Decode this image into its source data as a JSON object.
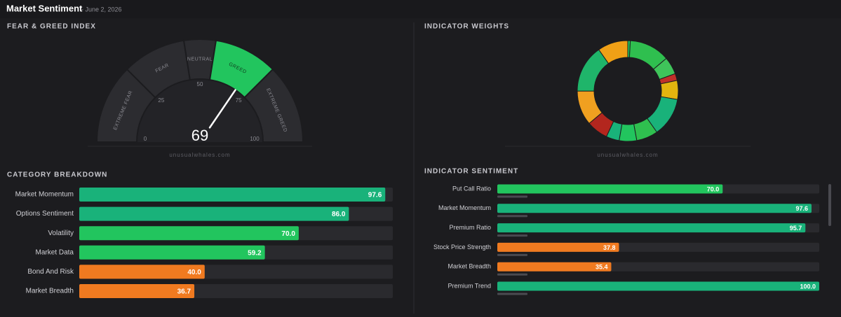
{
  "header": {
    "title": "Market Sentiment",
    "date": "- June 2, 2026"
  },
  "chart_data": [
    {
      "type": "gauge",
      "title": "FEAR & GREED INDEX",
      "value": 69,
      "lim": [
        0,
        100
      ],
      "ticks": [
        0,
        25,
        50,
        75,
        100
      ],
      "color": "#22c55e",
      "band_color": "#2c2c30",
      "bands": [
        {
          "label": "EXTREME FEAR",
          "from": 0,
          "to": 25
        },
        {
          "label": "FEAR",
          "from": 25,
          "to": 45
        },
        {
          "label": "NEUTRAL",
          "from": 45,
          "to": 55
        },
        {
          "label": "GREED",
          "from": 55,
          "to": 75
        },
        {
          "label": "EXTREME GREED",
          "from": 75,
          "to": 100
        }
      ],
      "source": "unusualwhales.com"
    },
    {
      "type": "donut",
      "title": "INDICATOR WEIGHTS",
      "source": "unusualwhales.com",
      "values": [
        0.8,
        13,
        5.6,
        2.2,
        6.1,
        12.5,
        6.9,
        5.6,
        4.2,
        6.9,
        11.1,
        15.3,
        9.7
      ],
      "colors": [
        "#22c55e",
        "#2fbf4f",
        "#3fc45a",
        "#c0302a",
        "#e3b50f",
        "#19b27a",
        "#2fbf4f",
        "#22c55e",
        "#19b27a",
        "#b3261e",
        "#f0a020",
        "#1fb56a",
        "#f0a016"
      ]
    },
    {
      "type": "hbar",
      "title": "CATEGORY BREAKDOWN",
      "xlim": [
        0,
        100
      ],
      "categories": [
        "Market Momentum",
        "Options Sentiment",
        "Volatility",
        "Market Data",
        "Bond And Risk",
        "Market Breadth"
      ],
      "values": [
        97.6,
        86.0,
        70.0,
        59.2,
        40.0,
        36.7
      ],
      "value_labels": [
        "97.6",
        "86.0",
        "70.0",
        "59.2",
        "40.0",
        "36.7"
      ],
      "colors": [
        "#19b27a",
        "#19b27a",
        "#22c55e",
        "#22c55e",
        "#f07a20",
        "#f07a20"
      ]
    },
    {
      "type": "hbar",
      "title": "INDICATOR SENTIMENT",
      "xlim": [
        0,
        100
      ],
      "categories": [
        "Put Call Ratio",
        "Market Momentum",
        "Premium Ratio",
        "Stock Price Strength",
        "Market Breadth",
        "Premium Trend"
      ],
      "values": [
        70.0,
        97.6,
        95.7,
        37.8,
        35.4,
        100.0
      ],
      "value_labels": [
        "70.0",
        "97.6",
        "95.7",
        "37.8",
        "35.4",
        "100.0"
      ],
      "colors": [
        "#22c55e",
        "#19b27a",
        "#19b27a",
        "#f07a20",
        "#f07a20",
        "#19b27a"
      ]
    }
  ]
}
